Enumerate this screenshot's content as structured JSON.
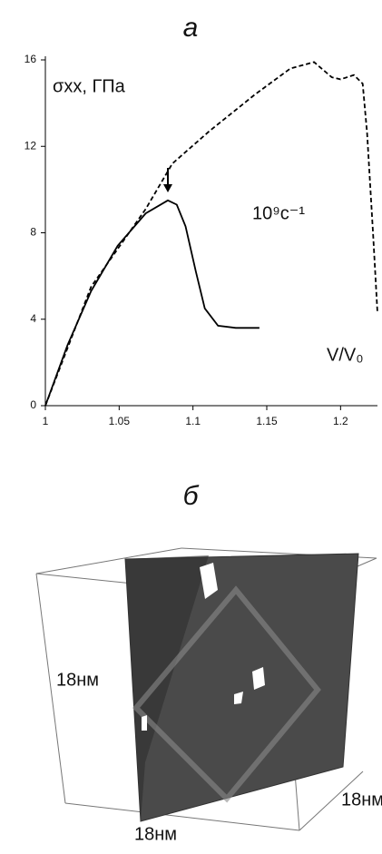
{
  "chart_data": {
    "type": "line",
    "title": "а",
    "y_label": "σxx, ГПа",
    "x_label": "V/V₀",
    "annotation": "10⁹c⁻¹",
    "xlim": [
      1,
      1.225
    ],
    "ylim": [
      0,
      16
    ],
    "xticks": [
      1,
      1.05,
      1.1,
      1.15,
      1.2
    ],
    "yticks": [
      0,
      4,
      8,
      12,
      16
    ],
    "grid": false,
    "series": [
      {
        "style": "solid",
        "color": "#000000",
        "x": [
          1,
          1.015,
          1.031,
          1.049,
          1.068,
          1.083,
          1.089,
          1.095,
          1.102,
          1.108,
          1.117,
          1.129,
          1.145
        ],
        "values": [
          0,
          2.8,
          5.3,
          7.4,
          8.9,
          9.5,
          9.3,
          8.3,
          6.2,
          4.5,
          3.7,
          3.6,
          3.6
        ]
      },
      {
        "style": "dashed",
        "color": "#000000",
        "x": [
          1,
          1.031,
          1.068,
          1.086,
          1.111,
          1.142,
          1.166,
          1.182,
          1.194,
          1.2,
          1.209,
          1.215,
          1.218,
          1.222,
          1.225
        ],
        "values": [
          0,
          5.5,
          9.1,
          11.2,
          12.7,
          14.4,
          15.6,
          15.9,
          15.2,
          15.1,
          15.3,
          14.9,
          12.6,
          8.0,
          4.3
        ]
      }
    ]
  },
  "panel_b": {
    "title": "б",
    "labels": [
      "18нм",
      "18нм",
      "18нм"
    ]
  }
}
